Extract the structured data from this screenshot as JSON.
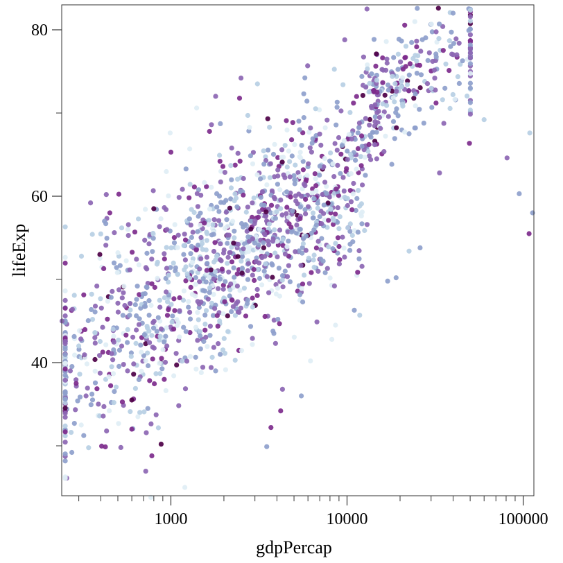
{
  "chart_data": {
    "type": "scatter",
    "title": "",
    "xlabel": "gdpPercap",
    "ylabel": "lifeExp",
    "x_scale": "log",
    "xlim": [
      240,
      115000
    ],
    "ylim": [
      24,
      83
    ],
    "x_ticks_major": [
      1000,
      10000,
      100000
    ],
    "x_tick_labels": [
      "1000",
      "10000",
      "100000"
    ],
    "y_ticks_major": [
      40,
      60,
      80
    ],
    "y_tick_labels": [
      "40",
      "60",
      "80"
    ],
    "y_ticks_minor": [
      30,
      50,
      70
    ],
    "grid": false,
    "legend": "none",
    "color_scale": [
      "#e0eef5",
      "#b7cfe4",
      "#8e9fcc",
      "#8c66b3",
      "#7d2b8c",
      "#4d0046"
    ],
    "point_count": 1704,
    "cloud_generator": {
      "seed": 20240611,
      "n": 1704,
      "log10_x_mean": 3.45,
      "log10_x_sd": 0.62,
      "trend": {
        "slope": 14.0,
        "intercept": 6.0
      },
      "y_noise_sd": 6.0,
      "ylim_clip": [
        24,
        82.6
      ]
    },
    "points": [
      {
        "x": 241,
        "y": 45.0
      },
      {
        "x": 276,
        "y": 46.4
      },
      {
        "x": 300,
        "y": 42.0
      },
      {
        "x": 310,
        "y": 32.5
      },
      {
        "x": 330,
        "y": 36.0
      },
      {
        "x": 350,
        "y": 59.2
      },
      {
        "x": 370,
        "y": 43.0
      },
      {
        "x": 380,
        "y": 49.2
      },
      {
        "x": 395,
        "y": 53.0
      },
      {
        "x": 420,
        "y": 57.0
      },
      {
        "x": 430,
        "y": 60.2
      },
      {
        "x": 450,
        "y": 58.0
      },
      {
        "x": 600,
        "y": 32.0
      },
      {
        "x": 520,
        "y": 29.8
      },
      {
        "x": 650,
        "y": 33.5
      },
      {
        "x": 770,
        "y": 23.8
      },
      {
        "x": 780,
        "y": 28.8
      },
      {
        "x": 880,
        "y": 30.2
      },
      {
        "x": 990,
        "y": 67.6
      },
      {
        "x": 1200,
        "y": 25.0
      },
      {
        "x": 1000,
        "y": 65.3
      },
      {
        "x": 1400,
        "y": 70.6
      },
      {
        "x": 1700,
        "y": 68.6
      },
      {
        "x": 2500,
        "y": 74.2
      },
      {
        "x": 3100,
        "y": 73.5
      },
      {
        "x": 3500,
        "y": 29.9
      },
      {
        "x": 3700,
        "y": 32.2
      },
      {
        "x": 4300,
        "y": 36.8
      },
      {
        "x": 4200,
        "y": 34.2
      },
      {
        "x": 5500,
        "y": 36.0
      },
      {
        "x": 6200,
        "y": 40.2
      },
      {
        "x": 8200,
        "y": 42.8
      },
      {
        "x": 8600,
        "y": 44.5
      },
      {
        "x": 9700,
        "y": 78.8
      },
      {
        "x": 11000,
        "y": 46.3
      },
      {
        "x": 11800,
        "y": 45.7
      },
      {
        "x": 12000,
        "y": 57.9
      },
      {
        "x": 13000,
        "y": 56.6
      },
      {
        "x": 17000,
        "y": 49.8
      },
      {
        "x": 19000,
        "y": 50.2
      },
      {
        "x": 22500,
        "y": 53.4
      },
      {
        "x": 26000,
        "y": 53.8
      },
      {
        "x": 32000,
        "y": 71.2
      },
      {
        "x": 33500,
        "y": 62.8
      },
      {
        "x": 33000,
        "y": 82.6
      },
      {
        "x": 40000,
        "y": 82.0
      },
      {
        "x": 42000,
        "y": 77.0
      },
      {
        "x": 50000,
        "y": 80.1
      },
      {
        "x": 60000,
        "y": 69.2
      },
      {
        "x": 81000,
        "y": 64.6
      },
      {
        "x": 95000,
        "y": 60.3
      },
      {
        "x": 108000,
        "y": 55.5
      },
      {
        "x": 109000,
        "y": 67.6
      },
      {
        "x": 113000,
        "y": 58.0
      },
      {
        "x": 1900,
        "y": 64.2
      },
      {
        "x": 2200,
        "y": 61.0
      },
      {
        "x": 600,
        "y": 35.5
      },
      {
        "x": 470,
        "y": 44.0
      },
      {
        "x": 800,
        "y": 58.5
      },
      {
        "x": 950,
        "y": 56.0
      }
    ]
  }
}
